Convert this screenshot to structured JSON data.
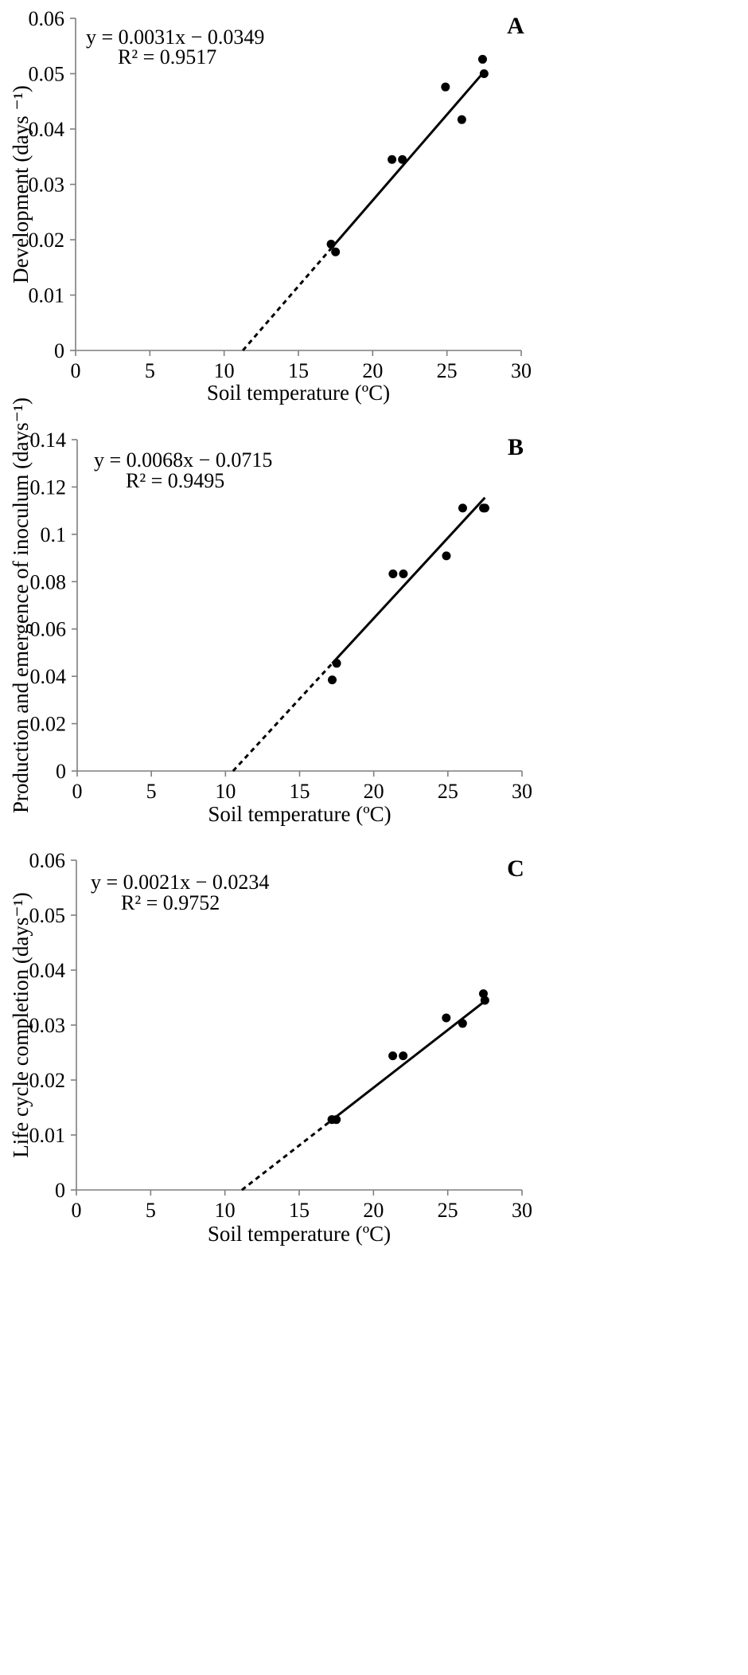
{
  "chart_data": [
    {
      "type": "scatter",
      "panel_label": "A",
      "title": "",
      "xlabel": "Soil temperature (ºC)",
      "ylabel": "Development (days ⁻¹)",
      "xlim": [
        0,
        30
      ],
      "ylim": [
        0,
        0.06
      ],
      "xticks": [
        "0",
        "5",
        "10",
        "15",
        "20",
        "25",
        "30"
      ],
      "yticks": [
        "0",
        "0.01",
        "0.02",
        "0.03",
        "0.04",
        "0.05",
        "0.06"
      ],
      "grid": false,
      "x": [
        17.2,
        17.5,
        21.3,
        22.0,
        24.9,
        26.0,
        27.4,
        27.5
      ],
      "y": [
        0.0192,
        0.0178,
        0.0345,
        0.0345,
        0.0476,
        0.0417,
        0.0526,
        0.05
      ],
      "trendline": {
        "slope": 0.0031,
        "intercept": -0.0349,
        "solid_x": [
          17.2,
          27.5
        ],
        "dashed_x": [
          11.26,
          17.2
        ]
      },
      "equation": "y = 0.0031x − 0.0349",
      "r_squared": "R² = 0.9517"
    },
    {
      "type": "scatter",
      "panel_label": "B",
      "title": "",
      "xlabel": "Soil temperature (ºC)",
      "ylabel": "Production and emergence of inoculum (days⁻¹)",
      "xlim": [
        0,
        30
      ],
      "ylim": [
        0,
        0.14
      ],
      "xticks": [
        "0",
        "5",
        "10",
        "15",
        "20",
        "25",
        "30"
      ],
      "yticks": [
        "0",
        "0.02",
        "0.04",
        "0.06",
        "0.08",
        "0.1",
        "0.12",
        "0.14"
      ],
      "grid": false,
      "x": [
        17.2,
        17.5,
        21.3,
        22.0,
        24.9,
        26.0,
        27.4,
        27.5
      ],
      "y": [
        0.0385,
        0.0455,
        0.0833,
        0.0833,
        0.0909,
        0.1111,
        0.1111,
        0.1111
      ],
      "trendline": {
        "slope": 0.0068,
        "intercept": -0.0715,
        "solid_x": [
          17.2,
          27.5
        ],
        "dashed_x": [
          10.51,
          17.2
        ]
      },
      "equation": "y = 0.0068x − 0.0715",
      "r_squared": "R² = 0.9495"
    },
    {
      "type": "scatter",
      "panel_label": "C",
      "title": "",
      "xlabel": "Soil temperature (ºC)",
      "ylabel": "Life cycle completion (days⁻¹)",
      "xlim": [
        0,
        30
      ],
      "ylim": [
        0,
        0.06
      ],
      "xticks": [
        "0",
        "5",
        "10",
        "15",
        "20",
        "25",
        "30"
      ],
      "yticks": [
        "0",
        "0.01",
        "0.02",
        "0.03",
        "0.04",
        "0.05",
        "0.06"
      ],
      "grid": false,
      "x": [
        17.2,
        17.5,
        21.3,
        22.0,
        24.9,
        26.0,
        27.4,
        27.5
      ],
      "y": [
        0.0128,
        0.0128,
        0.0244,
        0.0244,
        0.0313,
        0.0303,
        0.0357,
        0.0345
      ],
      "trendline": {
        "slope": 0.0021,
        "intercept": -0.0234,
        "solid_x": [
          17.2,
          27.5
        ],
        "dashed_x": [
          11.14,
          17.2
        ]
      },
      "equation": "y = 0.0021x − 0.0234",
      "r_squared": "R² = 0.9752"
    }
  ]
}
